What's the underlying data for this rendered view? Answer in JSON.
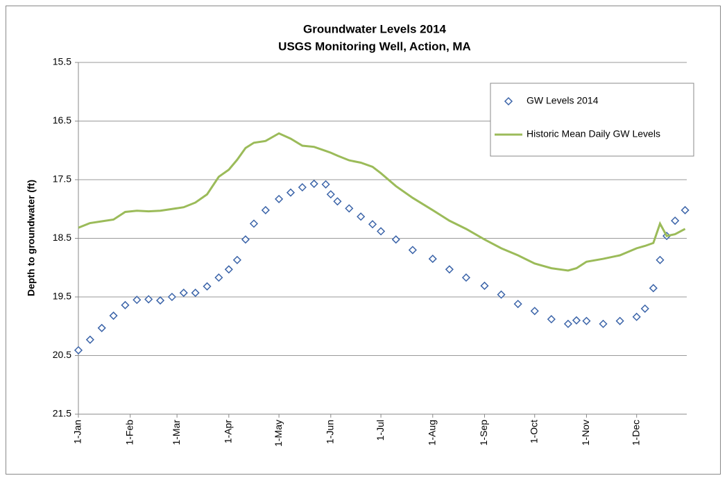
{
  "chart_data": {
    "type": "scatter-line",
    "title": "Groundwater Levels 2014",
    "subtitle": "USGS Monitoring Well, Action, MA",
    "y_label": "Depth to groundwater (ft)",
    "x": [
      0,
      7,
      14,
      21,
      28,
      35,
      42,
      49,
      56,
      63,
      70,
      77,
      84,
      90,
      95,
      100,
      105,
      112,
      120,
      127,
      134,
      141,
      148,
      151,
      155,
      162,
      169,
      176,
      181,
      190,
      200,
      212,
      222,
      232,
      243,
      253,
      263,
      273,
      283,
      293,
      298,
      304,
      314,
      324,
      334,
      339,
      344,
      348,
      352,
      357,
      363
    ],
    "xlim": [
      0,
      364
    ],
    "xticks": [
      {
        "value": 0,
        "label": "1-Jan"
      },
      {
        "value": 31,
        "label": "1-Feb"
      },
      {
        "value": 59,
        "label": "1-Mar"
      },
      {
        "value": 90,
        "label": "1-Apr"
      },
      {
        "value": 120,
        "label": "1-May"
      },
      {
        "value": 151,
        "label": "1-Jun"
      },
      {
        "value": 181,
        "label": "1-Jul"
      },
      {
        "value": 212,
        "label": "1-Aug"
      },
      {
        "value": 243,
        "label": "1-Sep"
      },
      {
        "value": 273,
        "label": "1-Oct"
      },
      {
        "value": 304,
        "label": "1-Nov"
      },
      {
        "value": 334,
        "label": "1-Dec"
      }
    ],
    "ylim": [
      15.5,
      21.5
    ],
    "y_inverted": true,
    "yticks": [
      15.5,
      16.5,
      17.5,
      18.5,
      19.5,
      20.5,
      21.5
    ],
    "grid": true,
    "legend": "upper-right",
    "series": [
      {
        "name": "GW Levels 2014",
        "kind": "markers",
        "color": "#3a63a8",
        "values": [
          20.41,
          20.23,
          20.03,
          19.82,
          19.64,
          19.55,
          19.54,
          19.56,
          19.5,
          19.43,
          19.43,
          19.32,
          19.17,
          19.03,
          18.87,
          18.52,
          18.25,
          18.02,
          17.83,
          17.72,
          17.63,
          17.57,
          17.58,
          17.75,
          17.87,
          17.99,
          18.13,
          18.26,
          18.38,
          18.52,
          18.7,
          18.85,
          19.03,
          19.17,
          19.31,
          19.46,
          19.62,
          19.74,
          19.88,
          19.96,
          19.9,
          19.91,
          19.96,
          19.91,
          19.84,
          19.7,
          19.35,
          18.87,
          18.46,
          18.2,
          18.02
        ]
      },
      {
        "name": "Historic Mean Daily GW Levels",
        "kind": "line",
        "color": "#9bbb59",
        "values": [
          18.32,
          18.24,
          18.21,
          18.18,
          18.05,
          18.03,
          18.04,
          18.03,
          18.0,
          17.97,
          17.89,
          17.75,
          17.45,
          17.33,
          17.16,
          16.96,
          16.87,
          16.84,
          16.71,
          16.8,
          16.92,
          16.94,
          17.01,
          17.04,
          17.09,
          17.17,
          17.21,
          17.28,
          17.39,
          17.61,
          17.81,
          18.02,
          18.2,
          18.34,
          18.52,
          18.67,
          18.79,
          18.93,
          19.01,
          19.05,
          19.01,
          18.9,
          18.85,
          18.79,
          18.67,
          18.63,
          18.58,
          18.25,
          18.46,
          18.43,
          18.34
        ]
      }
    ]
  }
}
